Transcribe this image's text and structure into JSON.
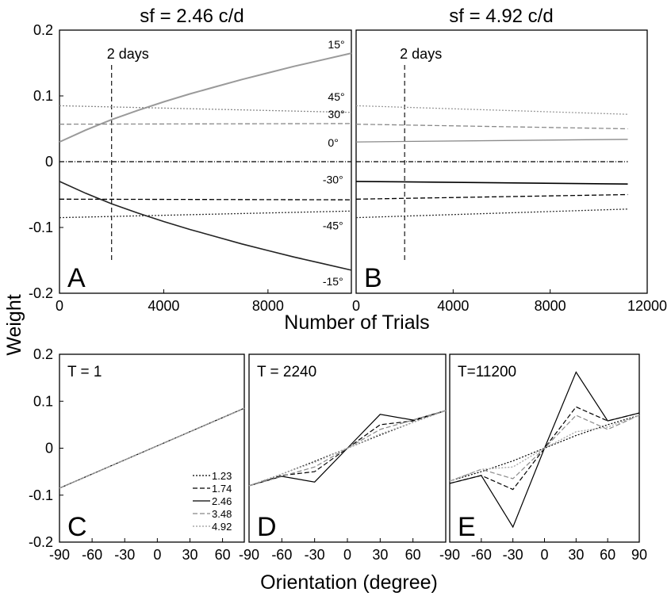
{
  "figure": {
    "ylabel": "Weight",
    "xlabel_top": "Number of Trials",
    "xlabel_bottom": "Orientation (degree)"
  },
  "chart_data": [
    {
      "panel": "A",
      "type": "line",
      "title": "sf = 2.46 c/d",
      "xlabel": "Number of Trials",
      "ylabel": "Weight",
      "xlim": [
        0,
        11200
      ],
      "ylim": [
        -0.2,
        0.2
      ],
      "xticks": [
        0,
        4000,
        8000
      ],
      "yticks": [
        0.2,
        0.1,
        0,
        -0.1,
        -0.2
      ],
      "ytick_labels": [
        "0.2",
        "0.1",
        "0",
        "-0.1",
        "-0.2"
      ],
      "marker": {
        "x": 2000,
        "label": "2 days"
      },
      "series": [
        {
          "name": "15°",
          "color": "#9a9a9a",
          "dash": "",
          "width": 2,
          "x": [
            0,
            1000,
            2000,
            3000,
            4000,
            5000,
            6000,
            7000,
            8000,
            9000,
            10000,
            11200
          ],
          "values": [
            0.03,
            0.048,
            0.064,
            0.078,
            0.091,
            0.103,
            0.114,
            0.125,
            0.135,
            0.145,
            0.154,
            0.165
          ]
        },
        {
          "name": "45°",
          "color": "#8a8a8a",
          "dash": "2,2",
          "width": 1.3,
          "x": [
            0,
            11200
          ],
          "values": [
            0.085,
            0.075
          ]
        },
        {
          "name": "30°",
          "color": "#8a8a8a",
          "dash": "6,3",
          "width": 1.3,
          "x": [
            0,
            11200
          ],
          "values": [
            0.057,
            0.058
          ]
        },
        {
          "name": "0°",
          "color": "#000000",
          "dash": "6,2,1,2",
          "width": 1.3,
          "x": [
            0,
            11200
          ],
          "values": [
            0.0,
            0.0
          ]
        },
        {
          "name": "-30°",
          "color": "#000000",
          "dash": "6,3",
          "width": 1.3,
          "x": [
            0,
            11200
          ],
          "values": [
            -0.057,
            -0.058
          ]
        },
        {
          "name": "-45°",
          "color": "#333333",
          "dash": "2,2",
          "width": 1.3,
          "x": [
            0,
            11200
          ],
          "values": [
            -0.085,
            -0.075
          ]
        },
        {
          "name": "-15°",
          "color": "#222222",
          "dash": "",
          "width": 1.6,
          "x": [
            0,
            1000,
            2000,
            3000,
            4000,
            5000,
            6000,
            7000,
            8000,
            9000,
            10000,
            11200
          ],
          "values": [
            -0.03,
            -0.048,
            -0.064,
            -0.078,
            -0.091,
            -0.103,
            -0.114,
            -0.125,
            -0.135,
            -0.145,
            -0.154,
            -0.165
          ]
        }
      ],
      "labels": [
        {
          "text": "15°",
          "x": 10300,
          "y": 0.172
        },
        {
          "text": "45°",
          "x": 10300,
          "y": 0.093
        },
        {
          "text": "30°",
          "x": 10300,
          "y": 0.066
        },
        {
          "text": "0°",
          "x": 10300,
          "y": 0.023
        },
        {
          "text": "-30°",
          "x": 10100,
          "y": -0.033
        },
        {
          "text": "-45°",
          "x": 10100,
          "y": -0.103
        },
        {
          "text": "-15°",
          "x": 10100,
          "y": -0.188
        }
      ]
    },
    {
      "panel": "B",
      "type": "line",
      "title": "sf = 4.92 c/d",
      "xlabel": "Number of Trials",
      "ylabel": "Weight",
      "xlim": [
        0,
        12000
      ],
      "ylim": [
        -0.2,
        0.2
      ],
      "xticks": [
        0,
        4000,
        8000,
        12000
      ],
      "marker": {
        "x": 2000,
        "label": "2 days"
      },
      "series": [
        {
          "color": "#9a9a9a",
          "dash": "2,2",
          "width": 1.3,
          "x": [
            0,
            11200
          ],
          "values": [
            0.085,
            0.072
          ]
        },
        {
          "color": "#8a8a8a",
          "dash": "6,3",
          "width": 1.3,
          "x": [
            0,
            11200
          ],
          "values": [
            0.057,
            0.05
          ]
        },
        {
          "color": "#8a8a8a",
          "dash": "",
          "width": 1.3,
          "x": [
            0,
            11200
          ],
          "values": [
            0.03,
            0.034
          ]
        },
        {
          "color": "#000000",
          "dash": "6,2,1,2",
          "width": 1.3,
          "x": [
            0,
            11200
          ],
          "values": [
            0.0,
            0.0
          ]
        },
        {
          "color": "#000000",
          "dash": "",
          "width": 1.6,
          "x": [
            0,
            11200
          ],
          "values": [
            -0.03,
            -0.034
          ]
        },
        {
          "color": "#000000",
          "dash": "6,3",
          "width": 1.3,
          "x": [
            0,
            11200
          ],
          "values": [
            -0.057,
            -0.05
          ]
        },
        {
          "color": "#333333",
          "dash": "2,2",
          "width": 1.3,
          "x": [
            0,
            11200
          ],
          "values": [
            -0.085,
            -0.072
          ]
        }
      ]
    },
    {
      "panel": "C",
      "type": "line",
      "title": "T = 1",
      "xlabel": "Orientation (degree)",
      "xlim": [
        -90,
        80
      ],
      "ylim": [
        -0.2,
        0.2
      ],
      "xticks": [
        -90,
        -60,
        -30,
        0,
        30,
        60
      ],
      "yticks": [
        0.2,
        0.1,
        0,
        -0.1,
        -0.2
      ],
      "ytick_labels": [
        "0.2",
        "0.1",
        "0",
        "-0.1",
        "-0.2"
      ],
      "legend": {
        "position": "bottom-right"
      },
      "series": [
        {
          "name": "1.23",
          "color": "#000000",
          "dash": "2,2",
          "width": 1.2,
          "x": [
            -90,
            80
          ],
          "values": [
            -0.085,
            0.085
          ]
        },
        {
          "name": "1.74",
          "color": "#000000",
          "dash": "6,3",
          "width": 1.2,
          "x": [
            -90,
            80
          ],
          "values": [
            -0.085,
            0.085
          ]
        },
        {
          "name": "2.46",
          "color": "#000000",
          "dash": "",
          "width": 1.2,
          "x": [
            -90,
            80
          ],
          "values": [
            -0.085,
            0.085
          ]
        },
        {
          "name": "3.48",
          "color": "#888888",
          "dash": "6,3",
          "width": 1.2,
          "x": [
            -90,
            80
          ],
          "values": [
            -0.085,
            0.085
          ]
        },
        {
          "name": "4.92",
          "color": "#aaaaaa",
          "dash": "2,2",
          "width": 1.4,
          "x": [
            -90,
            80
          ],
          "values": [
            -0.085,
            0.085
          ]
        }
      ]
    },
    {
      "panel": "D",
      "type": "line",
      "title": "T = 2240",
      "xlabel": "Orientation (degree)",
      "xlim": [
        -90,
        90
      ],
      "ylim": [
        -0.2,
        0.2
      ],
      "xticks": [
        -90,
        -60,
        -30,
        0,
        30,
        60
      ],
      "series": [
        {
          "color": "#000000",
          "dash": "2,2",
          "width": 1.2,
          "x": [
            -90,
            -60,
            -30,
            0,
            30,
            60,
            90
          ],
          "values": [
            -0.08,
            -0.055,
            -0.028,
            0,
            0.028,
            0.055,
            0.08
          ]
        },
        {
          "color": "#000000",
          "dash": "6,3",
          "width": 1.2,
          "x": [
            -90,
            -60,
            -30,
            0,
            30,
            60,
            90
          ],
          "values": [
            -0.08,
            -0.058,
            -0.05,
            0,
            0.05,
            0.058,
            0.08
          ]
        },
        {
          "color": "#000000",
          "dash": "",
          "width": 1.2,
          "x": [
            -90,
            -60,
            -30,
            0,
            30,
            60,
            90
          ],
          "values": [
            -0.08,
            -0.06,
            -0.072,
            0,
            0.072,
            0.06,
            0.08
          ]
        },
        {
          "color": "#888888",
          "dash": "6,3",
          "width": 1.2,
          "x": [
            -90,
            -60,
            -30,
            0,
            30,
            60,
            90
          ],
          "values": [
            -0.08,
            -0.06,
            -0.04,
            0,
            0.04,
            0.06,
            0.08
          ]
        },
        {
          "color": "#aaaaaa",
          "dash": "2,2",
          "width": 1.4,
          "x": [
            -90,
            -60,
            -30,
            0,
            30,
            60,
            90
          ],
          "values": [
            -0.08,
            -0.055,
            -0.03,
            0,
            0.03,
            0.055,
            0.08
          ]
        }
      ]
    },
    {
      "panel": "E",
      "type": "line",
      "title": "T=11200",
      "xlabel": "Orientation (degree)",
      "xlim": [
        -90,
        90
      ],
      "ylim": [
        -0.2,
        0.2
      ],
      "xticks": [
        -90,
        -60,
        -30,
        0,
        30,
        60,
        90
      ],
      "series": [
        {
          "color": "#000000",
          "dash": "2,2",
          "width": 1.2,
          "x": [
            -90,
            -60,
            -30,
            0,
            30,
            60,
            90
          ],
          "values": [
            -0.07,
            -0.05,
            -0.027,
            0,
            0.027,
            0.05,
            0.07
          ]
        },
        {
          "color": "#000000",
          "dash": "6,3",
          "width": 1.2,
          "x": [
            -90,
            -60,
            -30,
            0,
            30,
            60,
            90
          ],
          "values": [
            -0.075,
            -0.058,
            -0.088,
            0,
            0.088,
            0.058,
            0.075
          ]
        },
        {
          "color": "#000000",
          "dash": "",
          "width": 1.2,
          "x": [
            -90,
            -60,
            -30,
            0,
            30,
            60,
            90
          ],
          "values": [
            -0.075,
            -0.058,
            -0.168,
            0,
            0.162,
            0.058,
            0.075
          ]
        },
        {
          "color": "#888888",
          "dash": "6,3",
          "width": 1.2,
          "x": [
            -90,
            -60,
            -30,
            0,
            30,
            60,
            90
          ],
          "values": [
            -0.07,
            -0.045,
            -0.065,
            0,
            0.07,
            0.04,
            0.07
          ]
        },
        {
          "color": "#aaaaaa",
          "dash": "2,2",
          "width": 1.4,
          "x": [
            -90,
            -60,
            -30,
            0,
            30,
            60,
            90
          ],
          "values": [
            -0.07,
            -0.045,
            -0.04,
            0,
            0.035,
            0.045,
            0.07
          ]
        }
      ]
    }
  ]
}
